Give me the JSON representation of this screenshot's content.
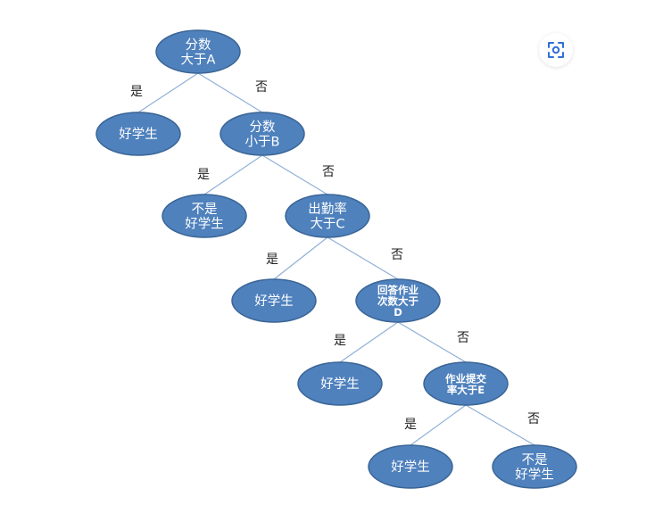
{
  "colors": {
    "node_fill": "#4f81bd",
    "node_stroke": "#3a6596",
    "edge": "#8fb0d6",
    "icon": "#2f6fd6"
  },
  "icons": {
    "lens": "visual-search-icon"
  },
  "nodes": [
    {
      "id": "n1",
      "lines": [
        "分数",
        "大于A"
      ],
      "small": false
    },
    {
      "id": "n2",
      "lines": [
        "好学生"
      ],
      "small": false
    },
    {
      "id": "n3",
      "lines": [
        "分数",
        "小于B"
      ],
      "small": false
    },
    {
      "id": "n4",
      "lines": [
        "不是",
        "好学生"
      ],
      "small": false
    },
    {
      "id": "n5",
      "lines": [
        "出勤率",
        "大于C"
      ],
      "small": false
    },
    {
      "id": "n6",
      "lines": [
        "好学生"
      ],
      "small": false
    },
    {
      "id": "n7",
      "lines": [
        "回答作业",
        "次数大于",
        "D"
      ],
      "small": true
    },
    {
      "id": "n8",
      "lines": [
        "好学生"
      ],
      "small": false
    },
    {
      "id": "n9",
      "lines": [
        "作业提交",
        "率大于E"
      ],
      "small": true
    },
    {
      "id": "n10",
      "lines": [
        "好学生"
      ],
      "small": false
    },
    {
      "id": "n11",
      "lines": [
        "不是",
        "好学生"
      ],
      "small": false
    }
  ],
  "edges": [
    {
      "from": "n1",
      "to": "n2",
      "label": "是"
    },
    {
      "from": "n1",
      "to": "n3",
      "label": "否"
    },
    {
      "from": "n3",
      "to": "n4",
      "label": "是"
    },
    {
      "from": "n3",
      "to": "n5",
      "label": "否"
    },
    {
      "from": "n5",
      "to": "n6",
      "label": "是"
    },
    {
      "from": "n5",
      "to": "n7",
      "label": "否"
    },
    {
      "from": "n7",
      "to": "n8",
      "label": "是"
    },
    {
      "from": "n7",
      "to": "n9",
      "label": "否"
    },
    {
      "from": "n9",
      "to": "n10",
      "label": "是"
    },
    {
      "from": "n9",
      "to": "n11",
      "label": "否"
    }
  ]
}
